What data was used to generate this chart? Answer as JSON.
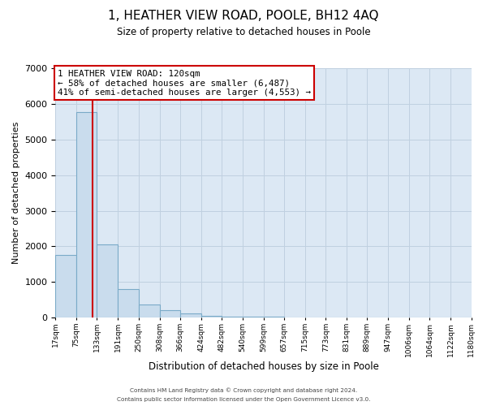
{
  "title": "1, HEATHER VIEW ROAD, POOLE, BH12 4AQ",
  "subtitle": "Size of property relative to detached houses in Poole",
  "xlabel": "Distribution of detached houses by size in Poole",
  "ylabel": "Number of detached properties",
  "bar_color": "#c9dced",
  "bar_edge_color": "#7aaac8",
  "grid_color": "#c0d0e0",
  "background_color": "#dce8f4",
  "vline_x": 120,
  "vline_color": "#cc0000",
  "bin_edges": [
    17,
    75,
    133,
    191,
    250,
    308,
    366,
    424,
    482,
    540,
    599,
    657,
    715,
    773,
    831,
    889,
    947,
    1006,
    1064,
    1122,
    1180
  ],
  "bin_labels": [
    "17sqm",
    "75sqm",
    "133sqm",
    "191sqm",
    "250sqm",
    "308sqm",
    "366sqm",
    "424sqm",
    "482sqm",
    "540sqm",
    "599sqm",
    "657sqm",
    "715sqm",
    "773sqm",
    "831sqm",
    "889sqm",
    "947sqm",
    "1006sqm",
    "1064sqm",
    "1122sqm",
    "1180sqm"
  ],
  "counts": [
    1750,
    5780,
    2060,
    800,
    370,
    220,
    110,
    55,
    30,
    25,
    20,
    0,
    0,
    0,
    0,
    0,
    0,
    0,
    0,
    0
  ],
  "ylim": [
    0,
    7000
  ],
  "yticks": [
    0,
    1000,
    2000,
    3000,
    4000,
    5000,
    6000,
    7000
  ],
  "annotation_title": "1 HEATHER VIEW ROAD: 120sqm",
  "annotation_line1": "← 58% of detached houses are smaller (6,487)",
  "annotation_line2": "41% of semi-detached houses are larger (4,553) →",
  "footer_line1": "Contains HM Land Registry data © Crown copyright and database right 2024.",
  "footer_line2": "Contains public sector information licensed under the Open Government Licence v3.0.",
  "fig_width": 6.0,
  "fig_height": 5.0,
  "dpi": 100
}
